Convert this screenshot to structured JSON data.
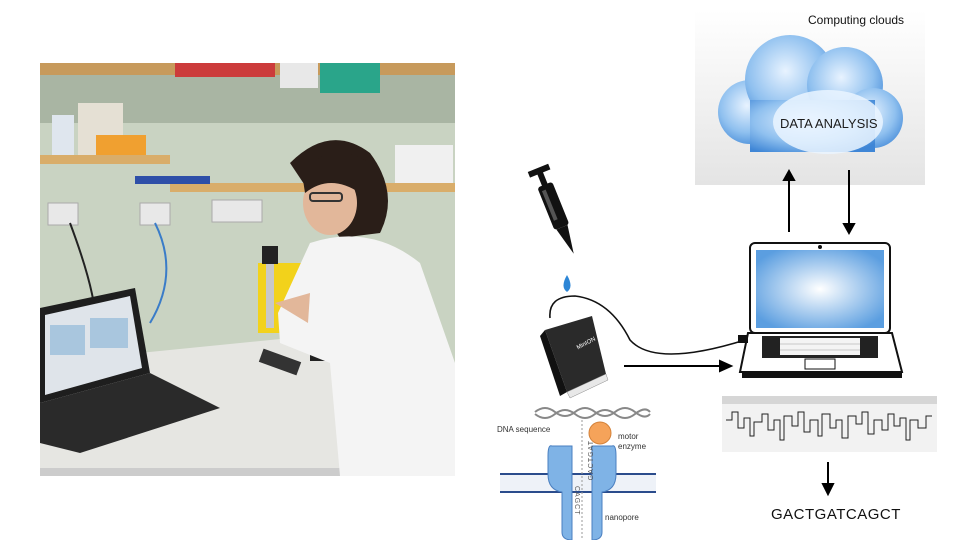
{
  "cloud": {
    "title": "Computing clouds",
    "label": "DATA ANALYSIS"
  },
  "nanopore": {
    "dna_label": "DNA sequence",
    "motor_label": "motor enzyme",
    "pore_label": "nanopore",
    "strand_letters_top": "GACTGAT",
    "strand_letters_bottom": "CAGCT",
    "device_brand": "MinION"
  },
  "output": {
    "sequence": "GACTGATCAGCT"
  },
  "colors": {
    "cloud_blue": "#4a8fd8",
    "pore_blue": "#7fb3e6",
    "motor_orange": "#f5a35a",
    "drop_blue": "#2d86d6",
    "screen_blue": "#5b9ee0"
  },
  "icons": [
    "photo-lab-scene",
    "pipette-icon",
    "droplet-icon",
    "sequencer-device-icon",
    "laptop-icon",
    "cloud-icon",
    "signal-trace-icon",
    "arrow-icon"
  ]
}
